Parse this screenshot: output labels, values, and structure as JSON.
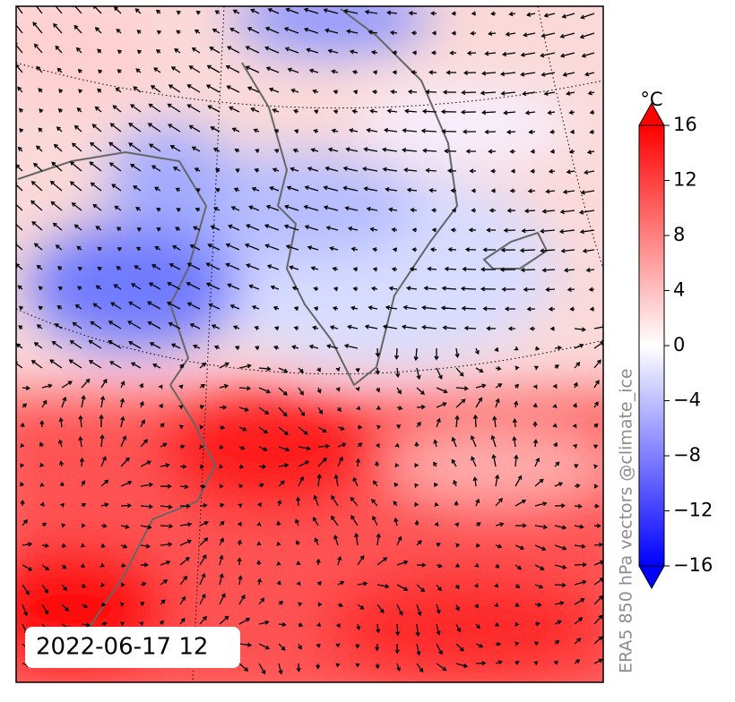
{
  "map": {
    "date_label": "2022-06-17 12",
    "credit": "ERA5 850 hPa vectors @climate_ice",
    "colorbar": {
      "unit": "°C",
      "lim": [
        -16,
        16
      ],
      "low_color": "#0000ff",
      "mid_color": "#ffffff",
      "high_color": "#ff0000",
      "ticks": [
        {
          "value": -16,
          "label": "−16"
        },
        {
          "value": -12,
          "label": "−12"
        },
        {
          "value": -8,
          "label": "−8"
        },
        {
          "value": -4,
          "label": "−4"
        },
        0,
        4,
        8,
        12,
        16
      ]
    }
  }
}
